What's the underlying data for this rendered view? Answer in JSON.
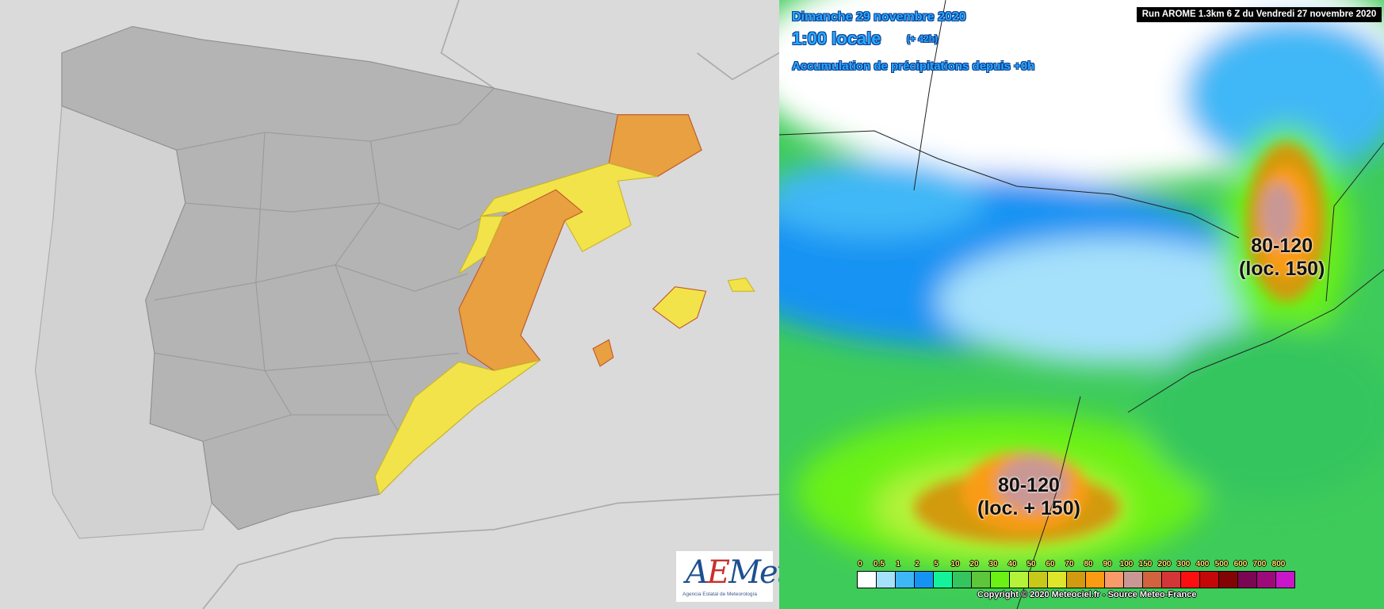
{
  "left_map": {
    "logo": {
      "text": "AEMet",
      "subtitle": "Agencia Estatal de Meteorología"
    },
    "warning_colors": {
      "yellow": "#f2e34a",
      "orange": "#e8a040",
      "land": "#b4b4b4",
      "sea": "#dadada"
    }
  },
  "right_map": {
    "date": "Dimanche 29 novembre 2020",
    "time": "1:00 locale",
    "lead": "(+ 42h)",
    "product": "Accumulation de précipitations depuis +0h",
    "run": "Run AROME 1.3km 6 Z du Vendredi 27 novembre 2020",
    "annotations": [
      {
        "range": "80-120",
        "note": "(loc. 150)"
      },
      {
        "range": "80-120",
        "note": "(loc. + 150)"
      }
    ],
    "legend": {
      "ticks": [
        "0",
        "0.5",
        "1",
        "2",
        "5",
        "10",
        "20",
        "30",
        "40",
        "50",
        "60",
        "70",
        "80",
        "90",
        "100",
        "150",
        "200",
        "300",
        "400",
        "500",
        "600",
        "700",
        "800"
      ],
      "colors": [
        "#ffffff",
        "#a6e1fb",
        "#3fb7f6",
        "#1593f3",
        "#14f39a",
        "#35c55f",
        "#5dc63a",
        "#6bf114",
        "#b5f33a",
        "#c8c81b",
        "#dfe52b",
        "#d29a0e",
        "#f99b13",
        "#f99a6a",
        "#c99894",
        "#d1643f",
        "#d43637",
        "#fb0f0f",
        "#c50707",
        "#830404",
        "#7a0654",
        "#9e0a7a",
        "#c816c8"
      ]
    },
    "copyright": "Copyright © 2020 Meteociel.fr - Source Meteo-France"
  }
}
